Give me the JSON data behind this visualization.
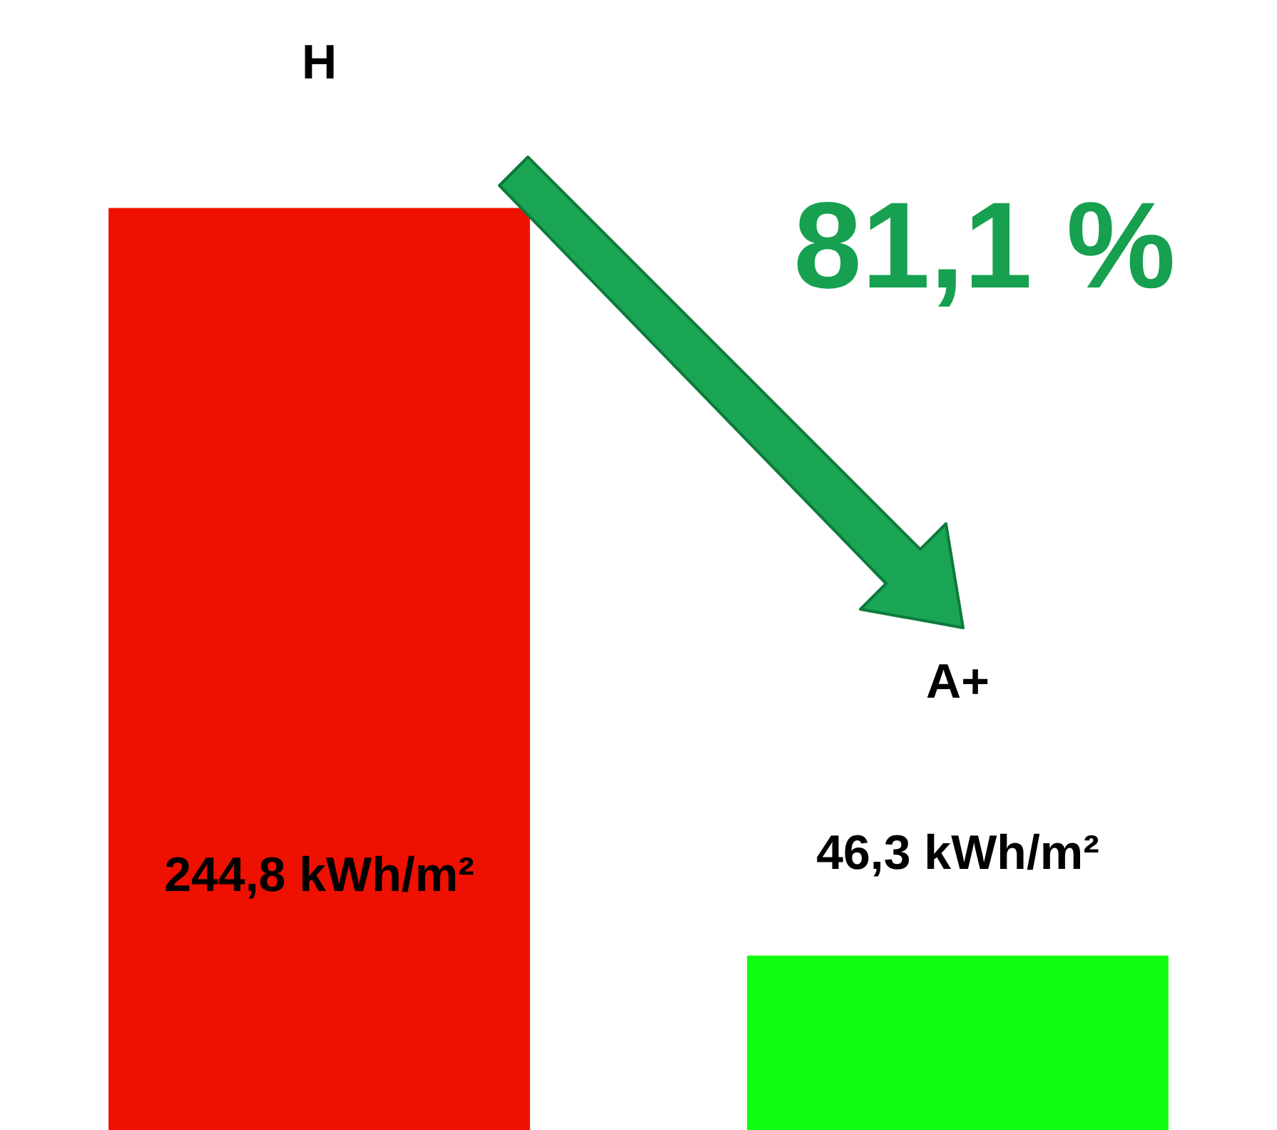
{
  "chart_data": {
    "type": "bar",
    "categories": [
      "H",
      "A+"
    ],
    "values": [
      244.8,
      46.3
    ],
    "value_labels": [
      "244,8 kWh/m²",
      "46,3 kWh/m²"
    ],
    "colors": [
      "#ee1000",
      "#10ff10"
    ],
    "annotations": [
      "81,1 %"
    ],
    "legend": false
  }
}
